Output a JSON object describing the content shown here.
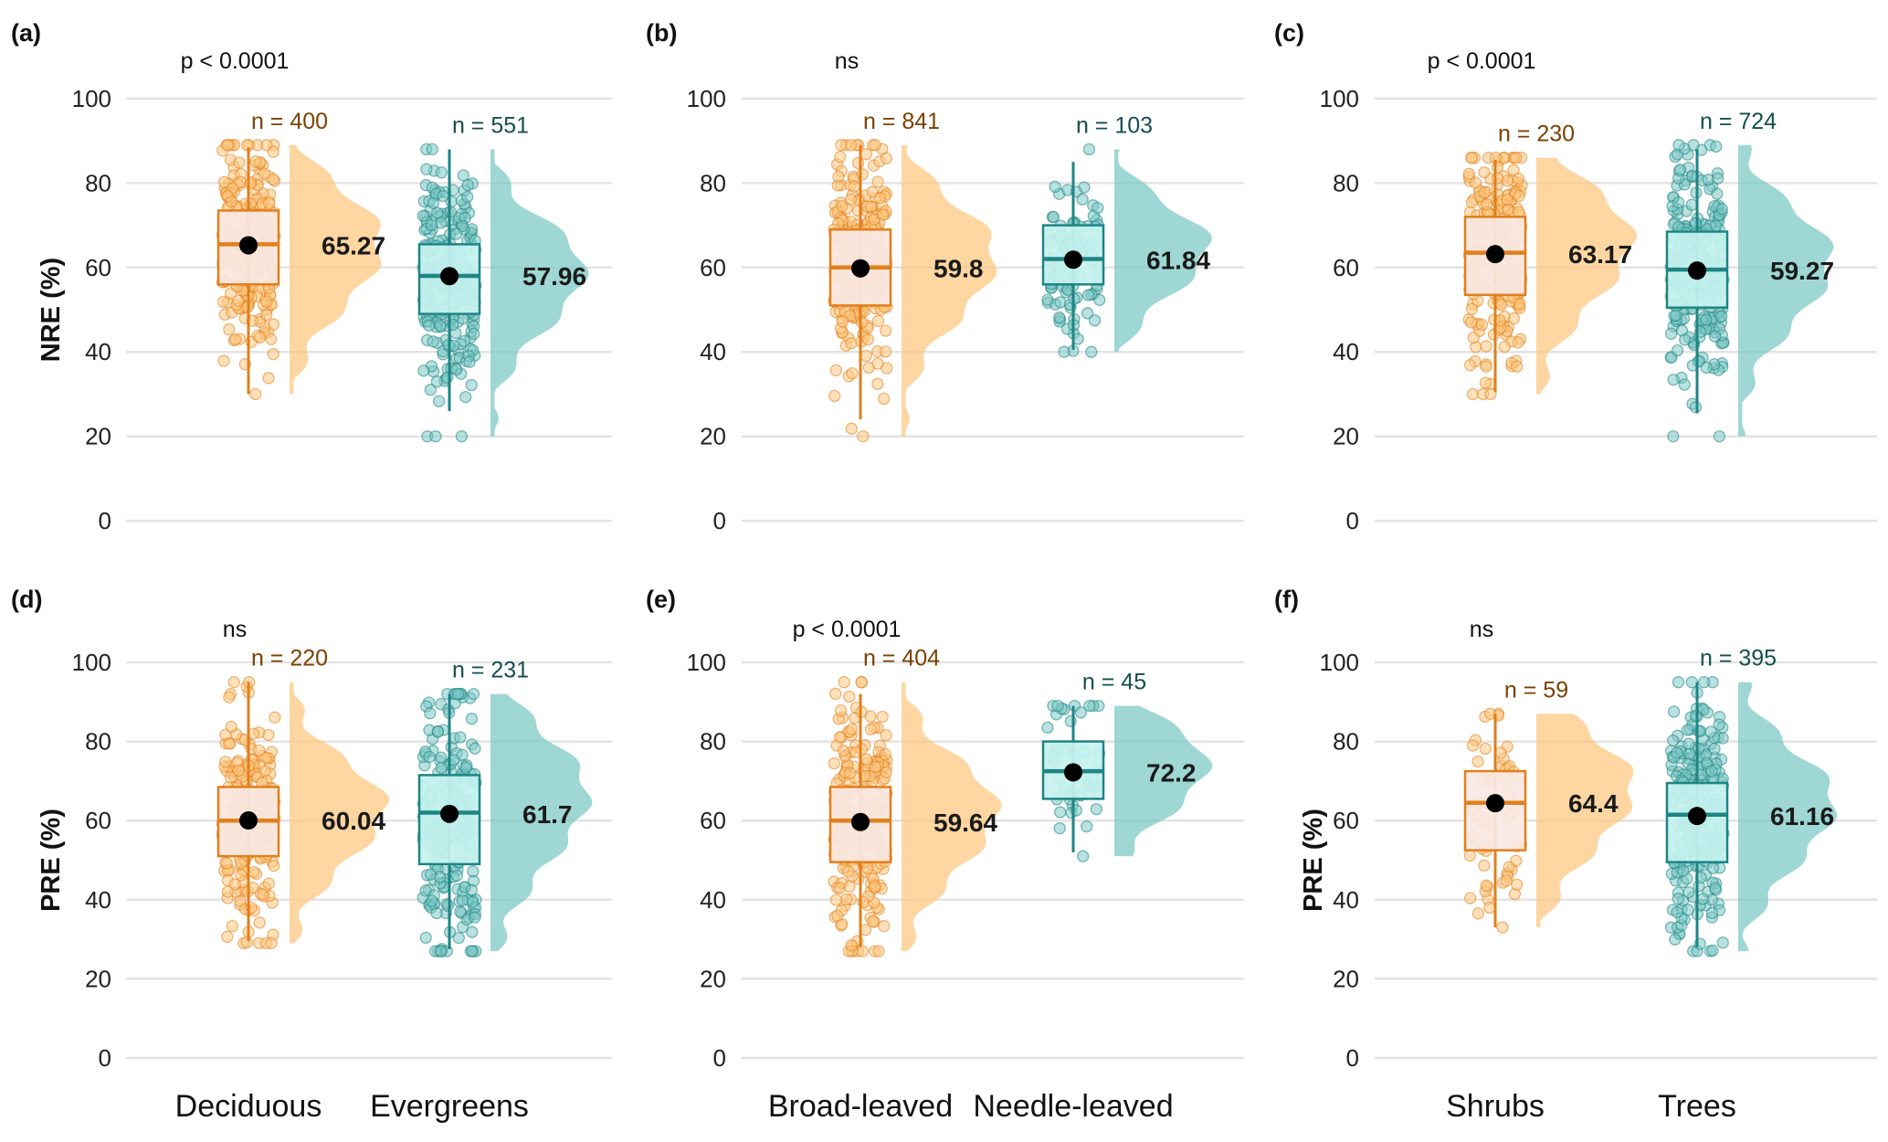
{
  "colors": {
    "orange_fill": "#FDC881",
    "orange_line": "#E17F1C",
    "orange_box": "#F8E8E3",
    "orange_text": "#7A4100",
    "teal_fill": "#7DC9C5",
    "teal_line": "#1E8584",
    "teal_box": "#C6F2EF",
    "teal_text": "#154F4E",
    "grid": "#E3E3E3"
  },
  "chart_data": [
    {
      "type": "raincloud",
      "panel_label": "(a)",
      "ylabel": "NRE (%)",
      "ylim": [
        0,
        100
      ],
      "yticks": [
        0,
        20,
        40,
        60,
        80,
        100
      ],
      "p_label": "p < 0.0001",
      "categories": [
        "Deciduous",
        "Evergreens"
      ],
      "series": [
        {
          "n_label": "n = 400",
          "mean": 65.27,
          "mean_label": "65.27",
          "median": 65.5,
          "q1": 56,
          "q3": 73.5,
          "wlo": 30,
          "whi": 88.5,
          "min": 30,
          "max": 89,
          "density_peak": 63
        },
        {
          "n_label": "n = 551",
          "mean": 57.96,
          "mean_label": "57.96",
          "median": 58,
          "q1": 49,
          "q3": 65.5,
          "wlo": 26,
          "whi": 88,
          "min": 20,
          "max": 88,
          "density_peak": 57
        }
      ]
    },
    {
      "type": "raincloud",
      "panel_label": "(b)",
      "ylabel": "",
      "ylim": [
        0,
        100
      ],
      "yticks": [
        0,
        20,
        40,
        60,
        80,
        100
      ],
      "p_label": "ns",
      "categories": [
        "Broad-leaved",
        "Needle-leaved"
      ],
      "series": [
        {
          "n_label": "n = 841",
          "mean": 59.8,
          "mean_label": "59.8",
          "median": 60,
          "q1": 51,
          "q3": 69,
          "wlo": 24,
          "whi": 89,
          "min": 20,
          "max": 89,
          "density_peak": 60
        },
        {
          "n_label": "n = 103",
          "mean": 61.84,
          "mean_label": "61.84",
          "median": 62,
          "q1": 56,
          "q3": 70,
          "wlo": 40.5,
          "whi": 85,
          "min": 40,
          "max": 88,
          "density_peak": 63
        }
      ]
    },
    {
      "type": "raincloud",
      "panel_label": "(c)",
      "ylabel": "",
      "ylim": [
        0,
        100
      ],
      "yticks": [
        0,
        20,
        40,
        60,
        80,
        100
      ],
      "p_label": "p < 0.0001",
      "categories": [
        "Shrubs",
        "Trees"
      ],
      "series": [
        {
          "n_label": "n = 230",
          "mean": 63.17,
          "mean_label": "63.17",
          "median": 63.5,
          "q1": 53.5,
          "q3": 72,
          "wlo": 30.5,
          "whi": 85.5,
          "min": 30,
          "max": 86,
          "density_peak": 64
        },
        {
          "n_label": "n = 724",
          "mean": 59.27,
          "mean_label": "59.27",
          "median": 59.5,
          "q1": 50.5,
          "q3": 68.5,
          "wlo": 25.5,
          "whi": 88,
          "min": 20,
          "max": 89,
          "density_peak": 59
        }
      ]
    },
    {
      "type": "raincloud",
      "panel_label": "(d)",
      "ylabel": "PRE (%)",
      "ylim": [
        0,
        100
      ],
      "yticks": [
        0,
        20,
        40,
        60,
        80,
        100
      ],
      "p_label": "ns",
      "categories": [
        "Deciduous",
        "Evergreens"
      ],
      "series": [
        {
          "n_label": "n = 220",
          "mean": 60.04,
          "mean_label": "60.04",
          "median": 60,
          "q1": 51,
          "q3": 68.5,
          "wlo": 29.5,
          "whi": 95,
          "min": 29,
          "max": 95,
          "density_peak": 61
        },
        {
          "n_label": "n = 231",
          "mean": 61.7,
          "mean_label": "61.7",
          "median": 62,
          "q1": 49,
          "q3": 71.5,
          "wlo": 27.5,
          "whi": 92,
          "min": 27,
          "max": 92,
          "density_peak": 64
        }
      ]
    },
    {
      "type": "raincloud",
      "panel_label": "(e)",
      "ylabel": "",
      "ylim": [
        0,
        100
      ],
      "yticks": [
        0,
        20,
        40,
        60,
        80,
        100
      ],
      "p_label": "p < 0.0001",
      "categories": [
        "Broad-leaved",
        "Needle-leaved"
      ],
      "series": [
        {
          "n_label": "n = 404",
          "mean": 59.64,
          "mean_label": "59.64",
          "median": 60,
          "q1": 49.5,
          "q3": 68.5,
          "wlo": 28,
          "whi": 92,
          "min": 27,
          "max": 95,
          "density_peak": 60
        },
        {
          "n_label": "n = 45",
          "mean": 72.2,
          "mean_label": "72.2",
          "median": 72.5,
          "q1": 65.5,
          "q3": 80,
          "wlo": 52,
          "whi": 89,
          "min": 51,
          "max": 89,
          "density_peak": 72
        }
      ]
    },
    {
      "type": "raincloud",
      "panel_label": "(f)",
      "ylabel": "PRE (%)",
      "ylim": [
        0,
        100
      ],
      "yticks": [
        0,
        20,
        40,
        60,
        80,
        100
      ],
      "p_label": "ns",
      "categories": [
        "Shrubs",
        "Trees"
      ],
      "series": [
        {
          "n_label": "n = 59",
          "mean": 64.4,
          "mean_label": "64.4",
          "median": 64.5,
          "q1": 52.5,
          "q3": 72.5,
          "wlo": 33,
          "whi": 87,
          "min": 33,
          "max": 87,
          "density_peak": 66
        },
        {
          "n_label": "n = 395",
          "mean": 61.16,
          "mean_label": "61.16",
          "median": 61.5,
          "q1": 49.5,
          "q3": 69.5,
          "wlo": 28,
          "whi": 95,
          "min": 27,
          "max": 95,
          "density_peak": 62
        }
      ]
    }
  ]
}
